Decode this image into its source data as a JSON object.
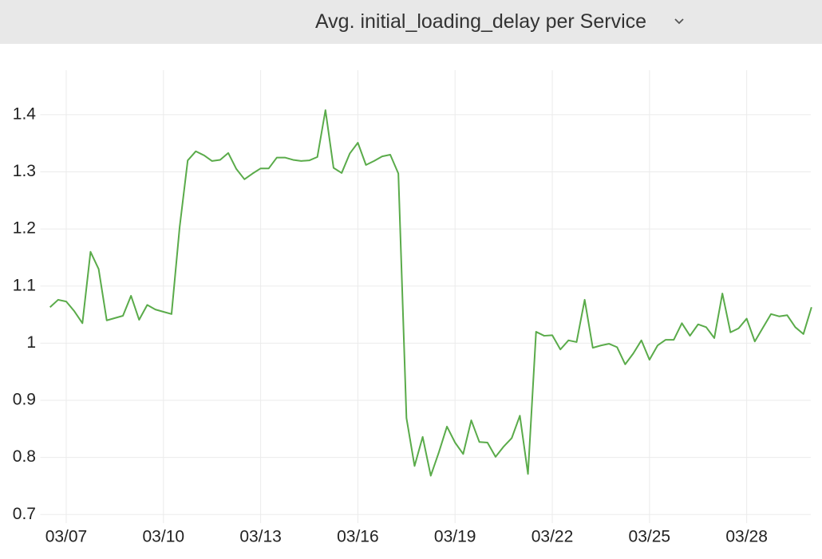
{
  "chart_data": {
    "type": "line",
    "title": "Avg. initial_loading_delay per Service",
    "x": [
      6.5,
      6.75,
      7,
      7.25,
      7.5,
      7.75,
      8,
      8.25,
      8.5,
      8.75,
      9,
      9.25,
      9.5,
      9.75,
      10,
      10.25,
      10.5,
      10.75,
      11,
      11.25,
      11.5,
      11.75,
      12,
      12.25,
      12.5,
      12.75,
      13,
      13.25,
      13.5,
      13.75,
      14,
      14.25,
      14.5,
      14.75,
      15,
      15.25,
      15.5,
      15.75,
      16,
      16.25,
      16.5,
      16.75,
      17,
      17.25,
      17.5,
      17.75,
      18,
      18.25,
      18.5,
      18.75,
      19,
      19.25,
      19.5,
      19.75,
      20,
      20.25,
      20.5,
      20.75,
      21,
      21.25,
      21.5,
      21.75,
      22,
      22.25,
      22.5,
      22.75,
      23,
      23.25,
      23.5,
      23.75,
      24,
      24.25,
      24.5,
      24.75,
      25,
      25.25,
      25.5,
      25.75,
      26,
      26.25,
      26.5,
      26.75,
      27,
      27.25,
      27.5,
      27.75,
      28,
      28.25,
      28.5,
      28.75,
      29,
      29.25,
      29.5,
      29.75,
      30
    ],
    "series": [
      {
        "color": "#5aab4a",
        "values": [
          1.063,
          1.076,
          1.073,
          1.056,
          1.035,
          1.16,
          1.13,
          1.04,
          1.044,
          1.048,
          1.083,
          1.041,
          1.067,
          1.059,
          1.055,
          1.051,
          1.203,
          1.32,
          1.336,
          1.329,
          1.319,
          1.321,
          1.333,
          1.305,
          1.287,
          1.297,
          1.306,
          1.306,
          1.325,
          1.325,
          1.321,
          1.319,
          1.32,
          1.326,
          1.408,
          1.307,
          1.298,
          1.332,
          1.351,
          1.312,
          1.319,
          1.327,
          1.33,
          1.297,
          0.869,
          0.785,
          0.836,
          0.768,
          0.809,
          0.854,
          0.826,
          0.806,
          0.865,
          0.827,
          0.826,
          0.801,
          0.819,
          0.834,
          0.873,
          0.771,
          1.02,
          1.013,
          1.014,
          0.989,
          1.005,
          1.002,
          1.076,
          0.992,
          0.996,
          0.999,
          0.993,
          0.963,
          0.982,
          1.005,
          0.971,
          0.996,
          1.006,
          1.006,
          1.035,
          1.013,
          1.033,
          1.028,
          1.009,
          1.087,
          1.019,
          1.026,
          1.043,
          1.003,
          1.027,
          1.051,
          1.047,
          1.049,
          1.028,
          1.016,
          1.063
        ]
      }
    ],
    "xlim": [
      6.2,
      30.1
    ],
    "xticks": [
      {
        "value": 7,
        "label": "03/07"
      },
      {
        "value": 10,
        "label": "03/10"
      },
      {
        "value": 13,
        "label": "03/13"
      },
      {
        "value": 16,
        "label": "03/16"
      },
      {
        "value": 19,
        "label": "03/19"
      },
      {
        "value": 22,
        "label": "03/22"
      },
      {
        "value": 25,
        "label": "03/25"
      },
      {
        "value": 28,
        "label": "03/28"
      }
    ],
    "ylim": [
      0.685,
      1.478
    ],
    "yticks": [
      0.7,
      0.8,
      0.9,
      1,
      1.1,
      1.2,
      1.3,
      1.4
    ],
    "grid": true
  }
}
